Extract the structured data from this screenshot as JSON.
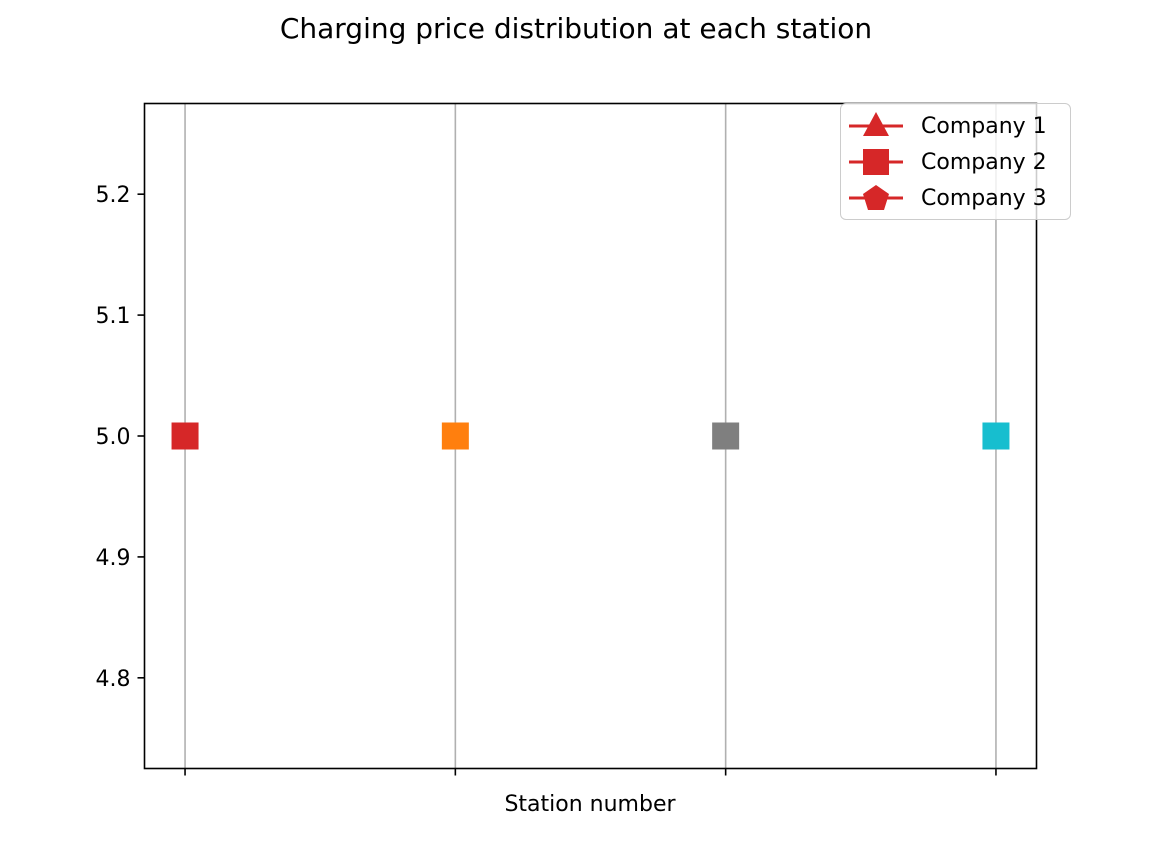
{
  "chart_data": {
    "type": "scatter",
    "title": "Charging price distribution at each station",
    "xlabel": "Station number",
    "ylabel": "",
    "x": [
      1,
      2,
      3,
      4
    ],
    "xlim": [
      0.85,
      4.15
    ],
    "ylim": [
      4.725,
      5.275
    ],
    "yticks": [
      4.8,
      4.9,
      5.0,
      5.1,
      5.2
    ],
    "ytick_labels": [
      "4.8",
      "4.9",
      "5.0",
      "5.1",
      "5.2"
    ],
    "xtick_labels": [
      "",
      "",
      "",
      ""
    ],
    "grid": "x-only",
    "legend_position": "top-right",
    "legend": [
      {
        "label": "Company 1",
        "marker": "triangle",
        "color": "#d62728"
      },
      {
        "label": "Company 2",
        "marker": "square",
        "color": "#d62728"
      },
      {
        "label": "Company 3",
        "marker": "pentagon",
        "color": "#d62728"
      }
    ],
    "points": [
      {
        "x": 1,
        "y": 5.0,
        "marker": "square",
        "color": "#d62728"
      },
      {
        "x": 2,
        "y": 5.0,
        "marker": "square",
        "color": "#ff7f0e"
      },
      {
        "x": 3,
        "y": 5.0,
        "marker": "square",
        "color": "#7f7f7f"
      },
      {
        "x": 4,
        "y": 5.0,
        "marker": "square",
        "color": "#17becf"
      }
    ]
  }
}
